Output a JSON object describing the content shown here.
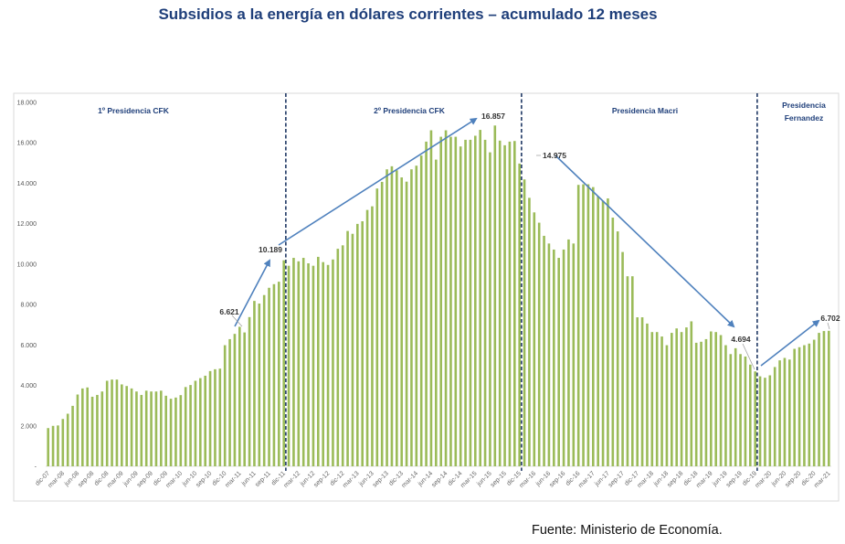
{
  "title": "Subsidios a la energía en dólares corrientes – acumulado 12 meses",
  "source": "Fuente: Ministerio de Economía.",
  "colors": {
    "bar": "#9bbb59",
    "arrow": "#4f81bd",
    "divider": "#1f3864",
    "title": "#1f3f7a"
  },
  "chart_data": {
    "type": "bar",
    "title": "Subsidios a la energía en dólares corrientes – acumulado 12 meses",
    "xlabel": "",
    "ylabel": "",
    "ylim": [
      0,
      18000
    ],
    "grid": false,
    "y_ticks": [
      "-",
      "2.000",
      "4.000",
      "6.000",
      "8.000",
      "10.000",
      "12.000",
      "14.000",
      "16.000",
      "18.000"
    ],
    "y_tick_values": [
      0,
      2000,
      4000,
      6000,
      8000,
      10000,
      12000,
      14000,
      16000,
      18000
    ],
    "categories": [
      "dic-07",
      "ene-08",
      "feb-08",
      "mar-08",
      "abr-08",
      "may-08",
      "jun-08",
      "jul-08",
      "ago-08",
      "sep-08",
      "oct-08",
      "nov-08",
      "dic-08",
      "ene-09",
      "feb-09",
      "mar-09",
      "abr-09",
      "may-09",
      "jun-09",
      "jul-09",
      "ago-09",
      "sep-09",
      "oct-09",
      "nov-09",
      "dic-09",
      "ene-10",
      "feb-10",
      "mar-10",
      "abr-10",
      "may-10",
      "jun-10",
      "jul-10",
      "ago-10",
      "sep-10",
      "oct-10",
      "nov-10",
      "dic-10",
      "ene-11",
      "feb-11",
      "mar-11",
      "abr-11",
      "may-11",
      "jun-11",
      "jul-11",
      "ago-11",
      "sep-11",
      "oct-11",
      "nov-11",
      "dic-11",
      "ene-12",
      "feb-12",
      "mar-12",
      "abr-12",
      "may-12",
      "jun-12",
      "jul-12",
      "ago-12",
      "sep-12",
      "oct-12",
      "nov-12",
      "dic-12",
      "ene-13",
      "feb-13",
      "mar-13",
      "abr-13",
      "may-13",
      "jun-13",
      "jul-13",
      "ago-13",
      "sep-13",
      "oct-13",
      "nov-13",
      "dic-13",
      "ene-14",
      "feb-14",
      "mar-14",
      "abr-14",
      "may-14",
      "jun-14",
      "jul-14",
      "ago-14",
      "sep-14",
      "oct-14",
      "nov-14",
      "dic-14",
      "ene-15",
      "feb-15",
      "mar-15",
      "abr-15",
      "may-15",
      "jun-15",
      "jul-15",
      "ago-15",
      "sep-15",
      "oct-15",
      "nov-15",
      "dic-15",
      "ene-16",
      "feb-16",
      "mar-16",
      "abr-16",
      "may-16",
      "jun-16",
      "jul-16",
      "ago-16",
      "sep-16",
      "oct-16",
      "nov-16",
      "dic-16",
      "ene-17",
      "feb-17",
      "mar-17",
      "abr-17",
      "may-17",
      "jun-17",
      "jul-17",
      "ago-17",
      "sep-17",
      "oct-17",
      "nov-17",
      "dic-17",
      "ene-18",
      "feb-18",
      "mar-18",
      "abr-18",
      "may-18",
      "jun-18",
      "jul-18",
      "ago-18",
      "sep-18",
      "oct-18",
      "nov-18",
      "dic-18",
      "ene-19",
      "feb-19",
      "mar-19",
      "abr-19",
      "may-19",
      "jun-19",
      "jul-19",
      "ago-19",
      "sep-19",
      "oct-19",
      "nov-19",
      "dic-19",
      "ene-20",
      "feb-20",
      "mar-20",
      "abr-20",
      "may-20",
      "jun-20",
      "jul-20",
      "ago-20",
      "sep-20",
      "oct-20",
      "nov-20",
      "dic-20",
      "ene-21",
      "feb-21",
      "mar-21"
    ],
    "values": [
      1890,
      2000,
      2020,
      2340,
      2600,
      2990,
      3550,
      3850,
      3900,
      3440,
      3530,
      3700,
      4230,
      4290,
      4290,
      4050,
      3970,
      3850,
      3700,
      3530,
      3740,
      3700,
      3700,
      3740,
      3490,
      3340,
      3400,
      3520,
      3920,
      4020,
      4230,
      4360,
      4480,
      4710,
      4800,
      4830,
      5990,
      6290,
      6550,
      6900,
      6621,
      7380,
      8180,
      8050,
      8470,
      8830,
      9010,
      9130,
      10189,
      9920,
      10310,
      10140,
      10310,
      10040,
      9920,
      10360,
      10100,
      9960,
      10230,
      10760,
      10930,
      11640,
      11500,
      11990,
      12120,
      12680,
      12860,
      13740,
      14070,
      14690,
      14840,
      14640,
      14290,
      14080,
      14690,
      14870,
      15370,
      16060,
      16620,
      15170,
      16300,
      16620,
      16300,
      16300,
      15820,
      16150,
      16150,
      16350,
      16640,
      16150,
      15530,
      16857,
      16110,
      15880,
      16060,
      16090,
      14975,
      14190,
      13280,
      12560,
      12050,
      11400,
      11020,
      10720,
      10310,
      10720,
      11220,
      11020,
      13920,
      13950,
      13950,
      13810,
      13360,
      13130,
      13250,
      12300,
      11620,
      10600,
      9400,
      9400,
      7370,
      7370,
      7060,
      6640,
      6640,
      6420,
      5990,
      6600,
      6820,
      6640,
      6870,
      7170,
      6110,
      6160,
      6290,
      6670,
      6640,
      6490,
      5990,
      5550,
      5840,
      5550,
      5430,
      5030,
      4694,
      4450,
      4380,
      4500,
      4910,
      5240,
      5360,
      5280,
      5810,
      5890,
      5990,
      6070,
      6260,
      6600,
      6690,
      6702
    ],
    "periods": [
      {
        "label": "1º Presidencia CFK",
        "start": "dic-07",
        "end": "dic-11"
      },
      {
        "label": "2º Presidencia CFK",
        "start": "ene-12",
        "end": "dic-15"
      },
      {
        "label": "Presidencia Macri",
        "start": "ene-16",
        "end": "dic-19"
      },
      {
        "label_line1": "Presidencia",
        "label_line2": "Fernandez",
        "start": "ene-20",
        "end": "mar-21"
      }
    ],
    "annotations": [
      {
        "label": "6.621",
        "category": "abr-11"
      },
      {
        "label": "10.189",
        "category": "dic-11"
      },
      {
        "label": "16.857",
        "category": "jul-15"
      },
      {
        "label": "14.975",
        "category": "dic-15"
      },
      {
        "label": "4.694",
        "category": "dic-19"
      },
      {
        "label": "6.702",
        "category": "mar-21"
      }
    ]
  }
}
